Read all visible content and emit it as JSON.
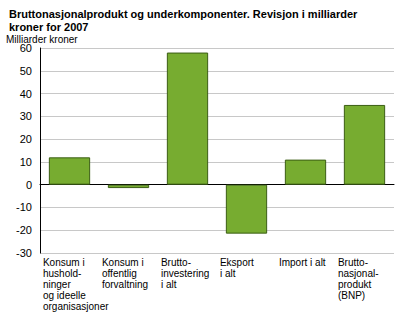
{
  "chart_data": {
    "type": "bar",
    "title": "Bruttonasjonalprodukt og underkomponenter. Revisjon i milliarder\nkroner for 2007",
    "y_label": "Milliarder kroner",
    "categories": [
      "Konsum i\nhushold-\nninger\nog ideelle\norganisasjoner",
      "Konsum i\noffentlig\nforvaltning",
      "Brutto-\ninvestering\ni alt",
      "Eksport\ni alt",
      "Import i alt",
      "Brutto-\nnasjonal-\nprodukt\n(BNP)"
    ],
    "values": [
      12,
      -1.5,
      58,
      -21.5,
      11,
      35
    ],
    "color": "#77ac30",
    "ylim": [
      -30,
      60
    ],
    "yticks": [
      -30,
      -20,
      -10,
      0,
      10,
      20,
      30,
      40,
      50,
      60
    ],
    "grid": true
  }
}
